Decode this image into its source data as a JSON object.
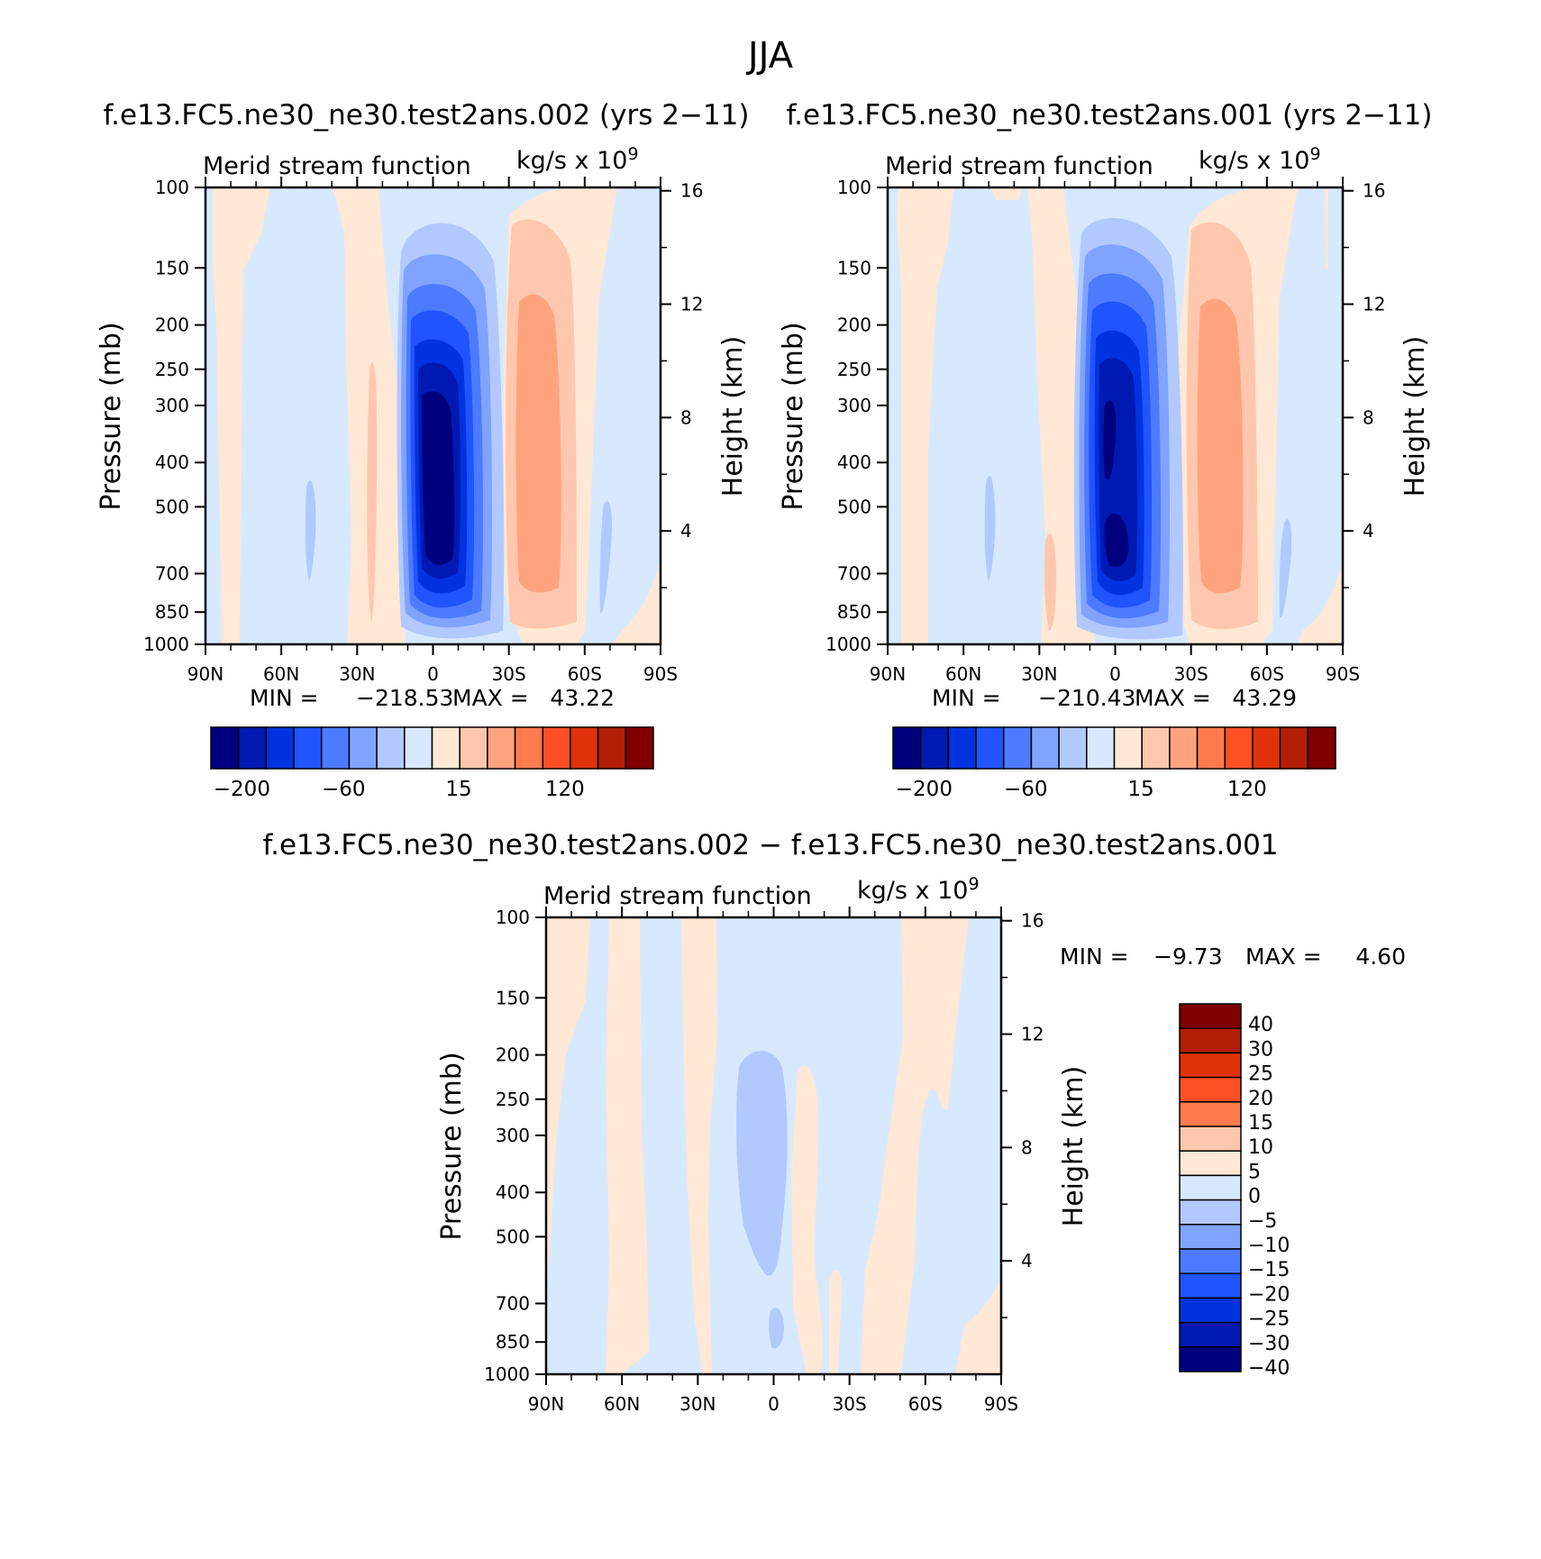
{
  "figure": {
    "title": "JJA",
    "panel_titles": [
      "f.e13.FC5.ne30_ne30.test2ans.002 (yrs 2−11)",
      "f.e13.FC5.ne30_ne30.test2ans.001 (yrs 2−11)",
      "f.e13.FC5.ne30_ne30.test2ans.002 − f.e13.FC5.ne30_ne30.test2ans.001"
    ],
    "field_label": "Merid stream function",
    "units_base": "kg/s x 10",
    "units_exp": "9"
  },
  "colors": {
    "model_palette": [
      "#00007f",
      "#0019b2",
      "#0033e0",
      "#1f54ff",
      "#4c7bff",
      "#7fa3ff",
      "#b2c9ff",
      "#d7e9ff",
      "#ffe8d5",
      "#ffc7ad",
      "#ffa37f",
      "#ff7a4c",
      "#ff5025",
      "#e0320a",
      "#b21e05",
      "#800000"
    ],
    "diff_palette": [
      "#00007f",
      "#0019b2",
      "#0033e0",
      "#1f54ff",
      "#4c7bff",
      "#7fa3ff",
      "#b2c9ff",
      "#d7e9ff",
      "#ffe8d5",
      "#ffc7ad",
      "#ff7a4c",
      "#ff5025",
      "#e0320a",
      "#b21e05",
      "#800000"
    ]
  },
  "chart_data": [
    {
      "type": "heatmap",
      "subtitle": "f.e13.FC5.ne30_ne30.test2ans.002 (yrs 2−11)",
      "title": "Merid stream function",
      "xlabel": "",
      "ylabel": "Pressure (mb)",
      "ylabel_right": "Height (km)",
      "x_ticks": [
        "90N",
        "60N",
        "30N",
        "0",
        "30S",
        "60S",
        "90S"
      ],
      "y_ticks": [
        100,
        150,
        200,
        250,
        300,
        400,
        500,
        700,
        850,
        1000
      ],
      "y_right_ticks": [
        16,
        12,
        8,
        4
      ],
      "min_label": "MIN =",
      "min": "−218.53",
      "max_label": "MAX =",
      "max": "43.22",
      "colorbar_labels": [
        "−200",
        "−60",
        "15",
        "120"
      ],
      "cells_mean_sign_pattern": "negative Hadley cell centered near equator (about 5N–10S), positive cell near 40S",
      "cells": [
        {
          "lat_center": -3,
          "p_center": 480,
          "lat_half_width": 18,
          "value": -218.53
        },
        {
          "lat_center": -41,
          "p_center": 480,
          "lat_half_width": 13,
          "value": 43.22
        }
      ]
    },
    {
      "type": "heatmap",
      "subtitle": "f.e13.FC5.ne30_ne30.test2ans.001 (yrs 2−11)",
      "title": "Merid stream function",
      "xlabel": "",
      "ylabel": "Pressure (mb)",
      "ylabel_right": "Height (km)",
      "x_ticks": [
        "90N",
        "60N",
        "30N",
        "0",
        "30S",
        "60S",
        "90S"
      ],
      "y_ticks": [
        100,
        150,
        200,
        250,
        300,
        400,
        500,
        700,
        850,
        1000
      ],
      "y_right_ticks": [
        16,
        12,
        8,
        4
      ],
      "min_label": "MIN =",
      "min": "−210.43",
      "max_label": "MAX =",
      "max": "43.29",
      "colorbar_labels": [
        "−200",
        "−60",
        "15",
        "120"
      ],
      "cells": [
        {
          "lat_center": -3,
          "p_center": 480,
          "lat_half_width": 18,
          "value": -210.43
        },
        {
          "lat_center": -41,
          "p_center": 480,
          "lat_half_width": 13,
          "value": 43.29
        }
      ]
    },
    {
      "type": "heatmap",
      "subtitle": "f.e13.FC5.ne30_ne30.test2ans.002 − f.e13.FC5.ne30_ne30.test2ans.001",
      "title": "Merid stream function",
      "xlabel": "",
      "ylabel": "Pressure (mb)",
      "ylabel_right": "Height (km)",
      "x_ticks": [
        "90N",
        "60N",
        "30N",
        "0",
        "30S",
        "60S",
        "90S"
      ],
      "y_ticks": [
        100,
        150,
        200,
        250,
        300,
        400,
        500,
        700,
        850,
        1000
      ],
      "y_right_ticks": [
        16,
        12,
        8,
        4
      ],
      "min_label": "MIN =",
      "min": "−9.73",
      "max_label": "MAX =",
      "max": "4.60",
      "colorbar_labels": [
        "40",
        "30",
        "25",
        "20",
        "15",
        "10",
        "5",
        "0",
        "−5",
        "−10",
        "−15",
        "−20",
        "−25",
        "−30",
        "−40"
      ]
    }
  ]
}
